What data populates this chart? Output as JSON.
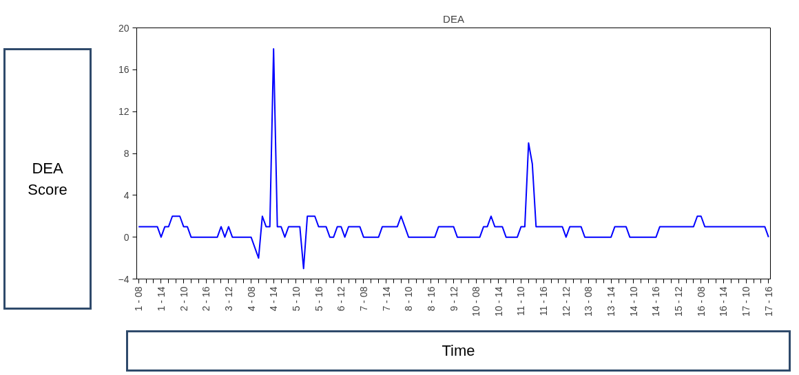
{
  "chart_data": {
    "type": "line",
    "title": "DEA",
    "xlabel": "Time",
    "ylabel": "DEA Score",
    "categories": [
      "1 - 08",
      null,
      null,
      null,
      null,
      null,
      "1 - 14",
      null,
      null,
      null,
      null,
      null,
      "2 - 10",
      null,
      null,
      null,
      null,
      null,
      "2 - 16",
      null,
      null,
      null,
      null,
      null,
      "3 - 12",
      null,
      null,
      null,
      null,
      null,
      "4 - 08",
      null,
      null,
      null,
      null,
      null,
      "4 - 14",
      null,
      null,
      null,
      null,
      null,
      "5 - 10",
      null,
      null,
      null,
      null,
      null,
      "5 - 16",
      null,
      null,
      null,
      null,
      null,
      "6 - 12",
      null,
      null,
      null,
      null,
      null,
      "7 - 08",
      null,
      null,
      null,
      null,
      null,
      "7 - 14",
      null,
      null,
      null,
      null,
      null,
      "8 - 10",
      null,
      null,
      null,
      null,
      null,
      "8 - 16",
      null,
      null,
      null,
      null,
      null,
      "9 - 12",
      null,
      null,
      null,
      null,
      null,
      "10 - 08",
      null,
      null,
      null,
      null,
      null,
      "10 - 14",
      null,
      null,
      null,
      null,
      null,
      "11 - 10",
      null,
      null,
      null,
      null,
      null,
      "11 - 16",
      null,
      null,
      null,
      null,
      null,
      "12 - 12",
      null,
      null,
      null,
      null,
      null,
      "13 - 08",
      null,
      null,
      null,
      null,
      null,
      "13 - 14",
      null,
      null,
      null,
      null,
      null,
      "14 - 10",
      null,
      null,
      null,
      null,
      null,
      "14 - 16",
      null,
      null,
      null,
      null,
      null,
      "15 - 12",
      null,
      null,
      null,
      null,
      null,
      "16 - 08",
      null,
      null,
      null,
      null,
      null,
      "16 - 14",
      null,
      null,
      null,
      null,
      null,
      "17 - 10",
      null,
      null,
      null,
      null,
      null,
      "17 - 16"
    ],
    "series": [
      {
        "color": "#0000ff",
        "values": [
          1,
          1,
          1,
          1,
          1,
          1,
          0,
          1,
          1,
          2,
          2,
          2,
          1,
          1,
          0,
          0,
          0,
          0,
          0,
          0,
          0,
          0,
          1,
          0,
          1,
          0,
          0,
          0,
          0,
          0,
          0,
          -1,
          -2,
          2,
          1,
          1,
          18,
          1,
          1,
          0,
          1,
          1,
          1,
          1,
          -3,
          2,
          2,
          2,
          1,
          1,
          1,
          0,
          0,
          1,
          1,
          0,
          1,
          1,
          1,
          1,
          0,
          0,
          0,
          0,
          0,
          1,
          1,
          1,
          1,
          1,
          2,
          1,
          0,
          0,
          0,
          0,
          0,
          0,
          0,
          0,
          1,
          1,
          1,
          1,
          1,
          0,
          0,
          0,
          0,
          0,
          0,
          0,
          1,
          1,
          2,
          1,
          1,
          1,
          0,
          0,
          0,
          0,
          1,
          1,
          9,
          7,
          1,
          1,
          1,
          1,
          1,
          1,
          1,
          1,
          0,
          1,
          1,
          1,
          1,
          0,
          0,
          0,
          0,
          0,
          0,
          0,
          0,
          1,
          1,
          1,
          1,
          0,
          0,
          0,
          0,
          0,
          0,
          0,
          0,
          1,
          1,
          1,
          1,
          1,
          1,
          1,
          1,
          1,
          1,
          2,
          2,
          1,
          1,
          1,
          1,
          1,
          1,
          1,
          1,
          1,
          1,
          1,
          1,
          1,
          1,
          1,
          1,
          1,
          0
        ]
      }
    ],
    "ylim": [
      -4,
      20
    ],
    "yticks": [
      -4,
      0,
      4,
      8,
      12,
      16,
      20
    ],
    "grid": false,
    "marker": "none",
    "line_style": "solid"
  }
}
